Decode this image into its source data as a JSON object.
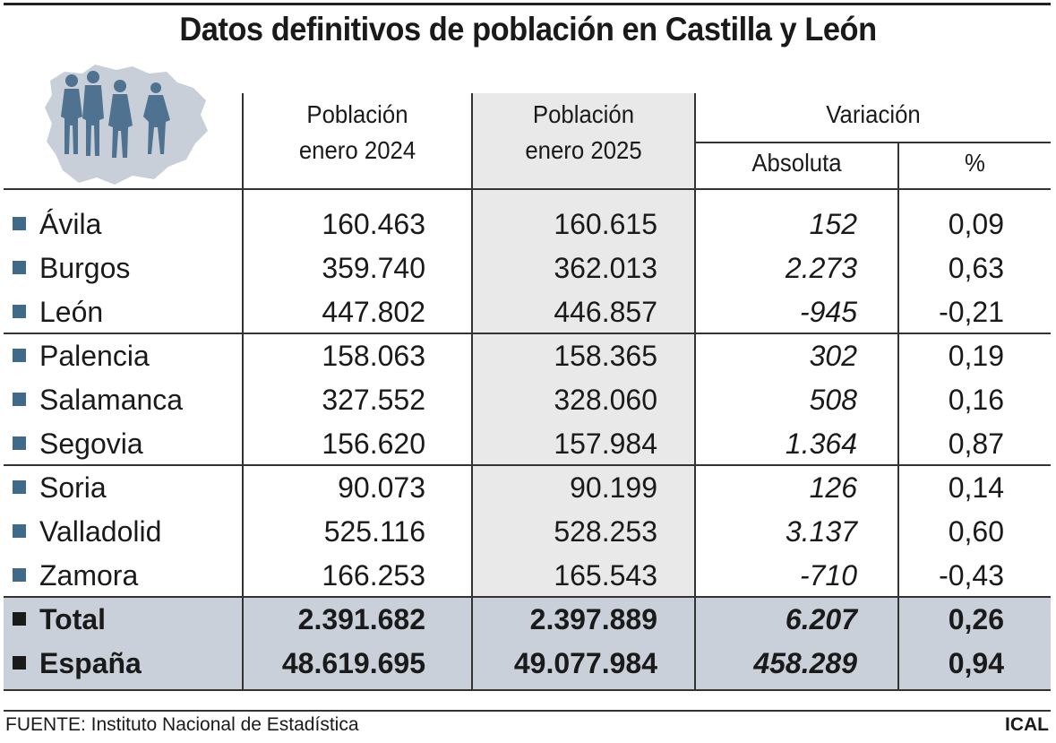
{
  "title": "Datos definitivos de población en Castilla y León",
  "headers": {
    "col_2024_line1": "Población",
    "col_2024_line2": "enero 2024",
    "col_2025_line1": "Población",
    "col_2025_line2": "enero 2025",
    "variation": "Variación",
    "absolute": "Absoluta",
    "percent": "%"
  },
  "rows": [
    {
      "name": "Ávila",
      "p2024": "160.463",
      "p2025": "160.615",
      "abs": "152",
      "pct": "0,09"
    },
    {
      "name": "Burgos",
      "p2024": "359.740",
      "p2025": "362.013",
      "abs": "2.273",
      "pct": "0,63"
    },
    {
      "name": "León",
      "p2024": "447.802",
      "p2025": "446.857",
      "abs": "-945",
      "pct": "-0,21"
    },
    {
      "name": "Palencia",
      "p2024": "158.063",
      "p2025": "158.365",
      "abs": "302",
      "pct": "0,19"
    },
    {
      "name": "Salamanca",
      "p2024": "327.552",
      "p2025": "328.060",
      "abs": "508",
      "pct": "0,16"
    },
    {
      "name": "Segovia",
      "p2024": "156.620",
      "p2025": "157.984",
      "abs": "1.364",
      "pct": "0,87"
    },
    {
      "name": "Soria",
      "p2024": "90.073",
      "p2025": "90.199",
      "abs": "126",
      "pct": "0,14"
    },
    {
      "name": "Valladolid",
      "p2024": "525.116",
      "p2025": "528.253",
      "abs": "3.137",
      "pct": "0,60"
    },
    {
      "name": "Zamora",
      "p2024": "166.253",
      "p2025": "165.543",
      "abs": "-710",
      "pct": "-0,43"
    },
    {
      "name": "Total",
      "p2024": "2.391.682",
      "p2025": "2.397.889",
      "abs": "6.207",
      "pct": "0,26"
    },
    {
      "name": "España",
      "p2024": "48.619.695",
      "p2025": "49.077.984",
      "abs": "458.289",
      "pct": "0,94"
    }
  ],
  "footer": {
    "source": "FUENTE: Instituto Nacional de Estadística",
    "brand": "ICAL"
  },
  "colors": {
    "bullet": "#3f6a8a",
    "shade_column": "#e9e9e9",
    "shade_totals": "#c9d0d9",
    "silhouette": "#4e7290",
    "map": "#c8cfd8"
  },
  "icons": [
    "people-on-map-illustration"
  ]
}
